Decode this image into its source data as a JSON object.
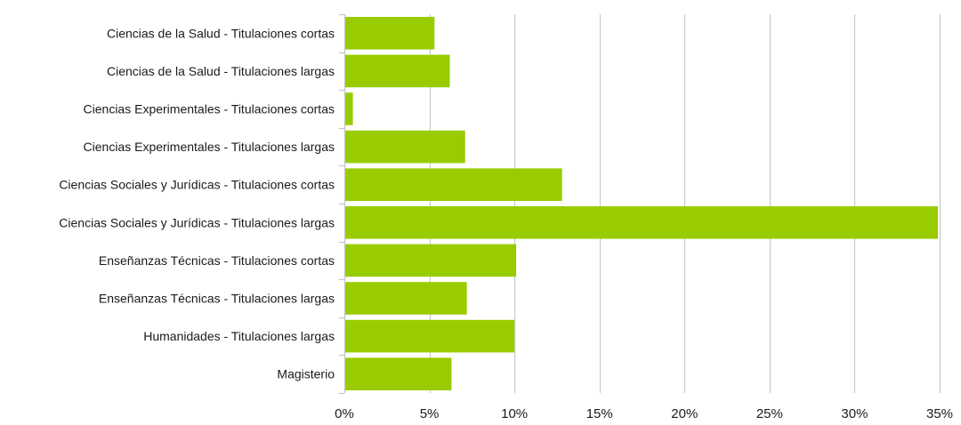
{
  "chart_data": {
    "type": "bar",
    "orientation": "horizontal",
    "categories": [
      "Ciencias de la Salud - Titulaciones cortas",
      "Ciencias de la Salud - Titulaciones largas",
      "Ciencias Experimentales - Titulaciones cortas",
      "Ciencias Experimentales - Titulaciones largas",
      "Ciencias Sociales y Jurídicas - Titulaciones cortas",
      "Ciencias Sociales y Jurídicas - Titulaciones largas",
      "Enseñanzas Técnicas - Titulaciones cortas",
      "Enseñanzas Técnicas - Titulaciones largas",
      "Humanidades - Titulaciones largas",
      "Magisterio"
    ],
    "values": [
      5.3,
      6.2,
      0.5,
      7.1,
      12.8,
      34.9,
      10.1,
      7.2,
      10.0,
      6.3
    ],
    "xlim": [
      0,
      35
    ],
    "x_ticks": [
      0,
      5,
      10,
      15,
      20,
      25,
      30,
      35
    ],
    "x_tick_labels": [
      "0%",
      "5%",
      "10%",
      "15%",
      "20%",
      "25%",
      "30%",
      "35%"
    ],
    "title": "",
    "xlabel": "",
    "ylabel": "",
    "grid": "vertical",
    "legend": "none",
    "bar_color": "#99cc00",
    "grid_color": "#c8c8c8"
  }
}
